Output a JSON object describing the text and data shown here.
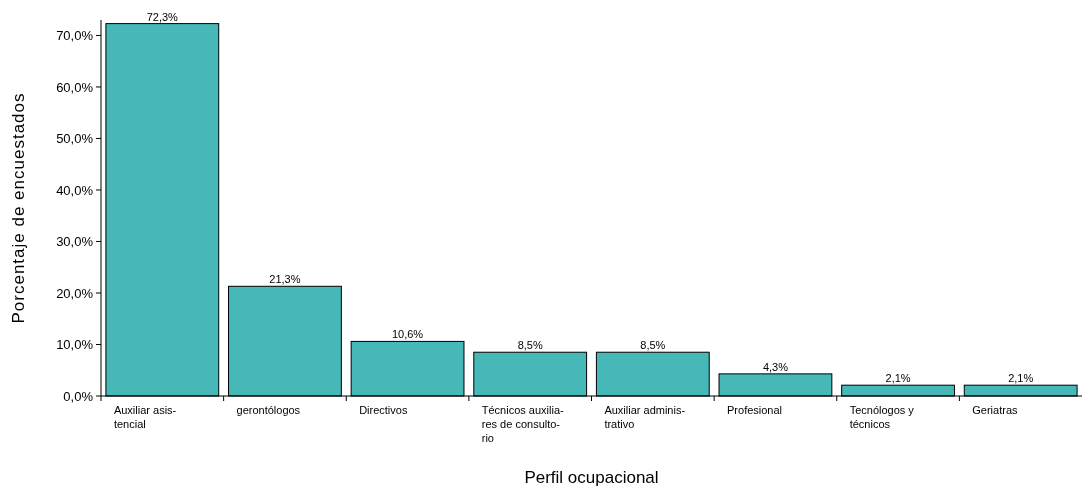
{
  "chart_data": {
    "type": "bar",
    "xlabel": "Perfil ocupacional",
    "ylabel": "Porcentaje de encuestados",
    "categories": [
      "Auxiliar asis-\ntencial",
      "gerontólogos",
      "Directivos",
      "Técnicos auxilia-\nres de consulto-\nrio",
      "Auxiliar adminis-\ntrativo",
      "Profesional",
      "Tecnólogos  y\ntécnicos",
      "Geriatras"
    ],
    "values": [
      72.3,
      21.3,
      10.6,
      8.5,
      8.5,
      4.3,
      2.1,
      2.1
    ],
    "value_labels": [
      "72,3%",
      "21,3%",
      "10,6%",
      "8,5%",
      "8,5%",
      "4,3%",
      "2,1%",
      "2,1%"
    ],
    "color": "#46b8b8",
    "ylim": [
      0,
      73
    ],
    "yticks": [
      {
        "value": 0,
        "label": "0,0%"
      },
      {
        "value": 10,
        "label": "10,0%"
      },
      {
        "value": 20,
        "label": "20,0%"
      },
      {
        "value": 30,
        "label": "30,0%"
      },
      {
        "value": 40,
        "label": "40,0%"
      },
      {
        "value": 50,
        "label": "50,0%"
      },
      {
        "value": 60,
        "label": "60,0%"
      },
      {
        "value": 70,
        "label": "70,0%"
      }
    ],
    "grid": false
  }
}
